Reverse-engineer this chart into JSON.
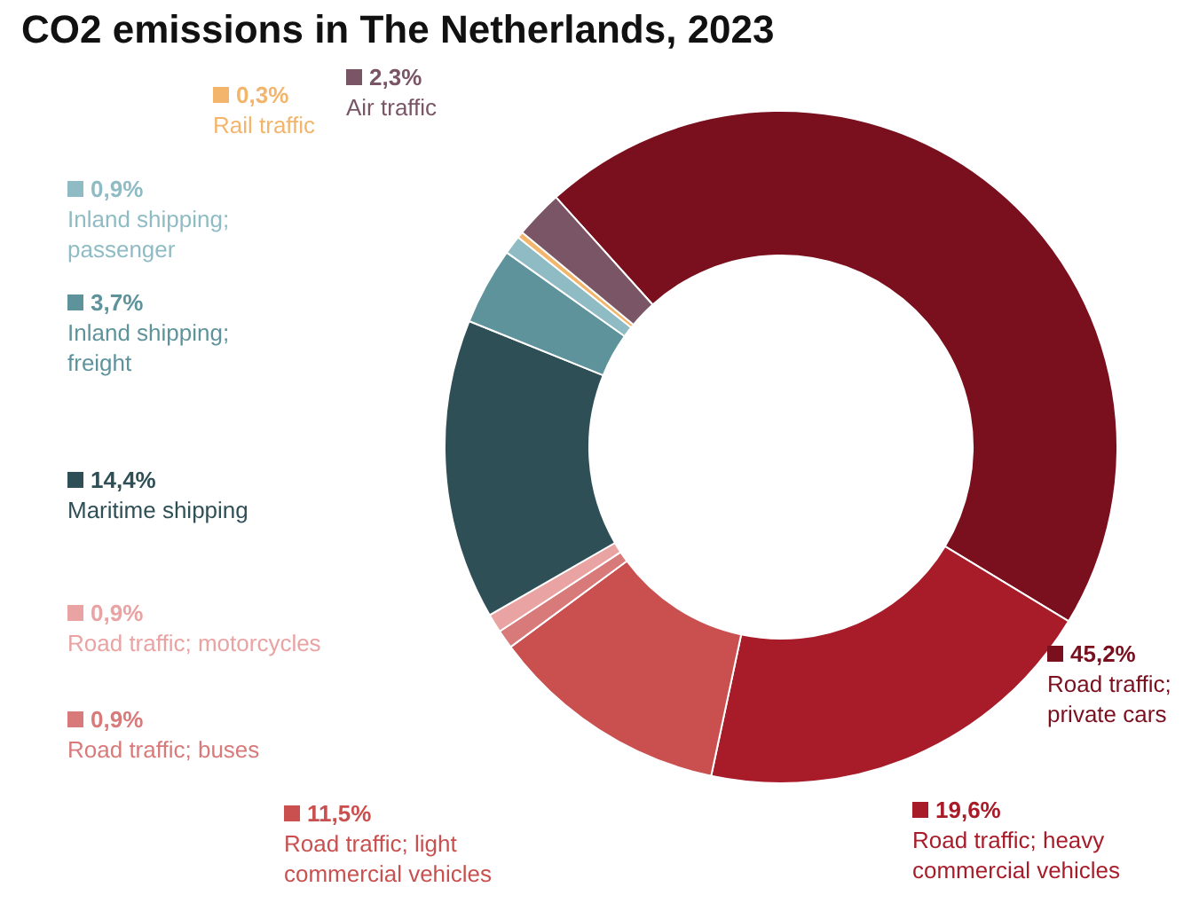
{
  "chart_data": {
    "type": "donut",
    "title": "CO2 emissions in The Netherlands, 2023",
    "categories": [
      "Road traffic; private cars",
      "Road traffic; heavy commercial vehicles",
      "Road traffic; light commercial vehicles",
      "Road traffic; buses",
      "Road traffic; motorcycles",
      "Maritime shipping",
      "Inland shipping; freight",
      "Inland shipping; passenger",
      "Rail traffic",
      "Air traffic"
    ],
    "values": [
      45.2,
      19.6,
      11.5,
      0.9,
      0.9,
      14.4,
      3.7,
      0.9,
      0.3,
      2.3
    ],
    "value_labels": [
      "45,2%",
      "19,6%",
      "11,5%",
      "0,9%",
      "0,9%",
      "14,4%",
      "3,7%",
      "0,9%",
      "0,3%",
      "2,3%"
    ],
    "colors": [
      "#7a0f1e",
      "#a81c2a",
      "#c9504f",
      "#d97a7a",
      "#eaa3a3",
      "#2f4f57",
      "#5e939c",
      "#8fbcc4",
      "#f2b56b",
      "#7a5566"
    ],
    "legend": "left"
  }
}
